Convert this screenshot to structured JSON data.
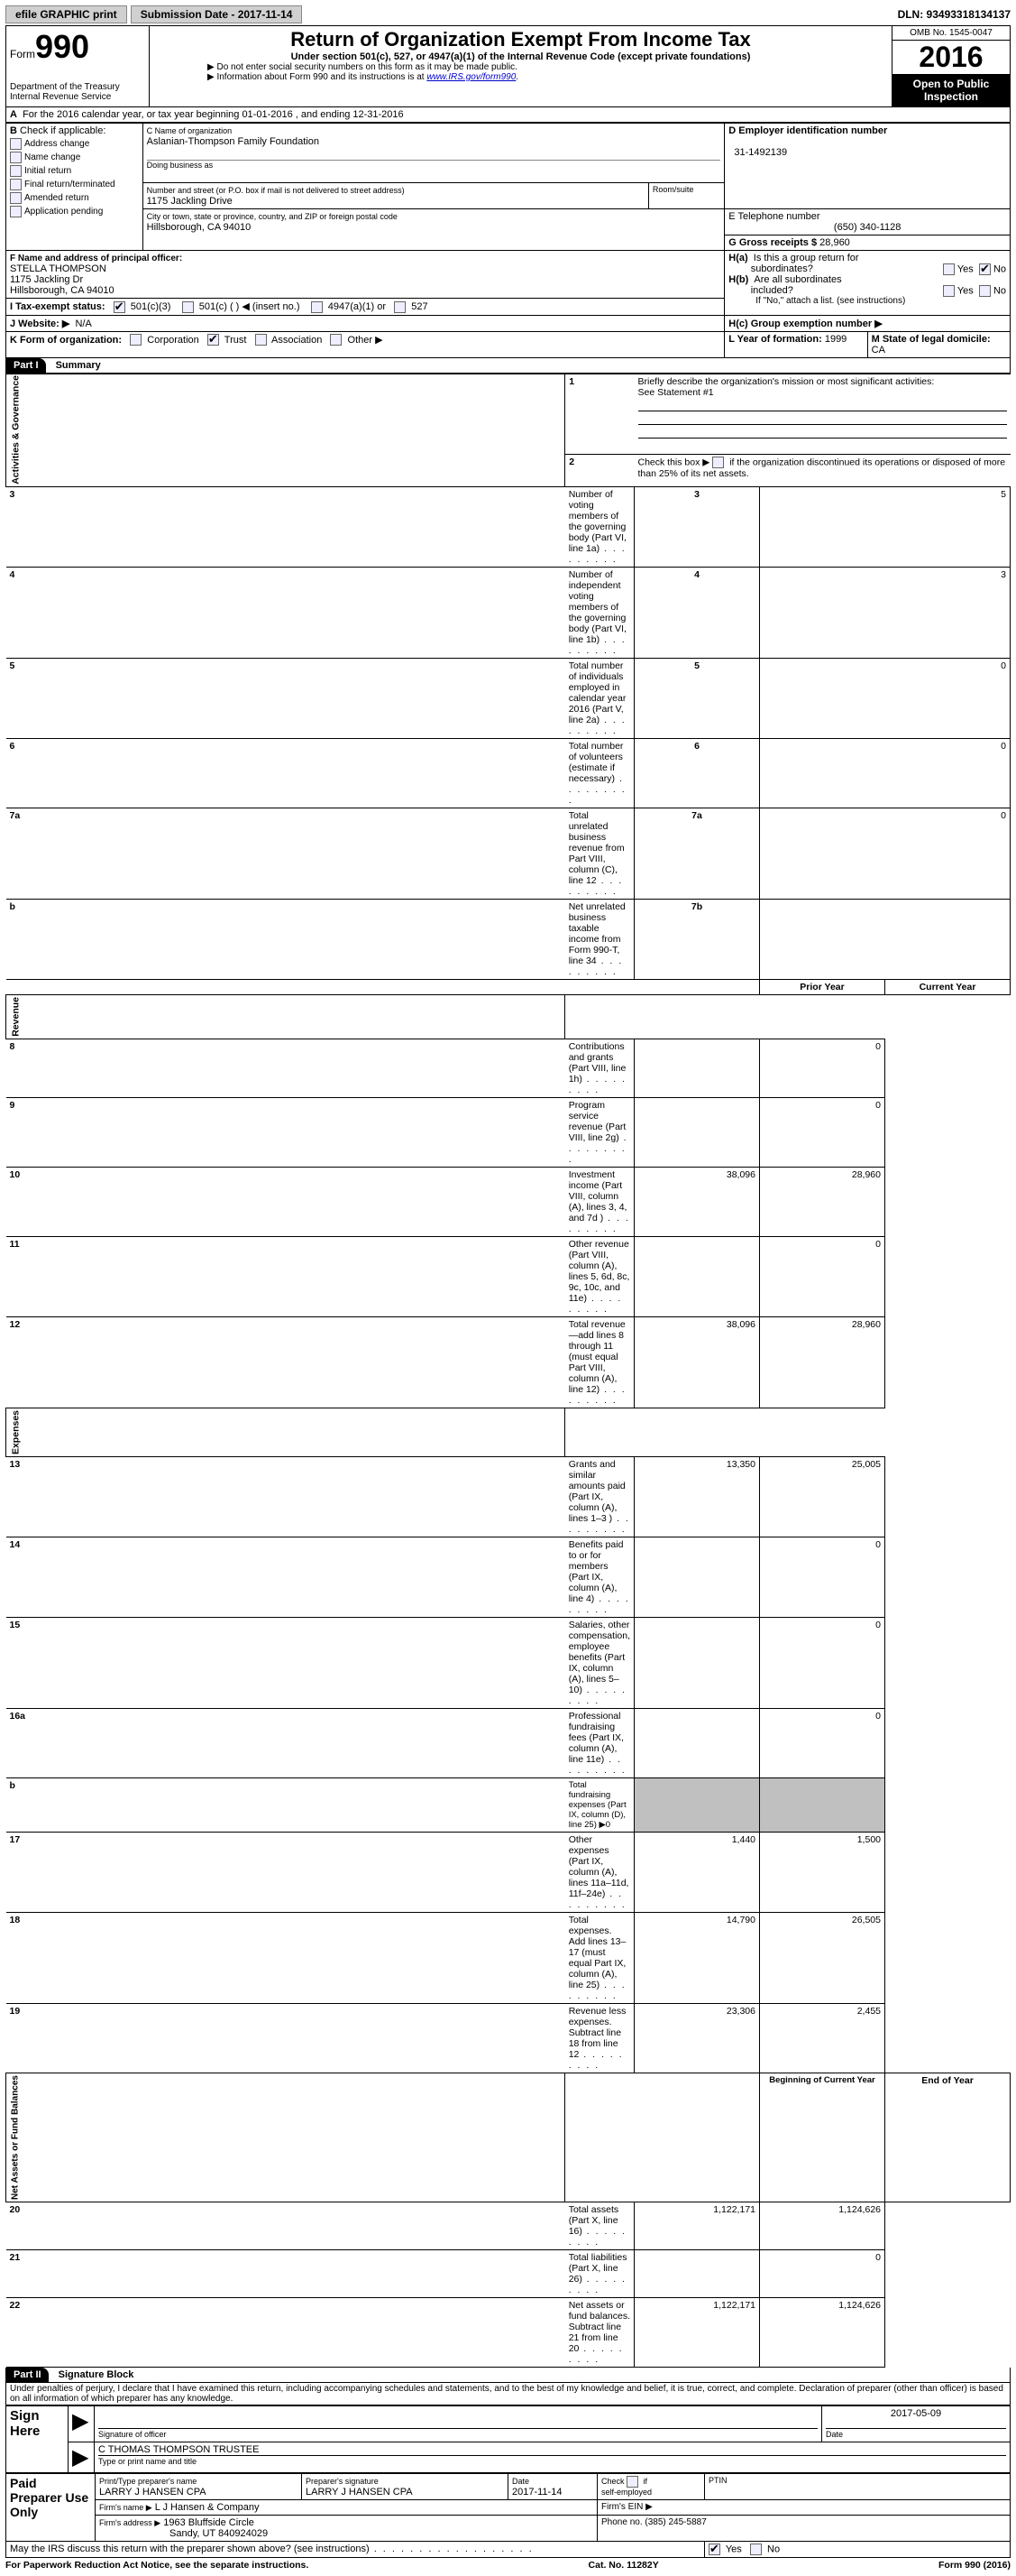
{
  "top": {
    "efile": "efile GRAPHIC print",
    "submission": "Submission Date - 2017-11-14",
    "dln": "DLN: 93493318134137"
  },
  "header": {
    "form_word": "Form",
    "form_num": "990",
    "dept": "Department of the Treasury",
    "irs": "Internal Revenue Service",
    "title": "Return of Organization Exempt From Income Tax",
    "subtitle": "Under section 501(c), 527, or 4947(a)(1) of the Internal Revenue Code (except private foundations)",
    "instr1": "▶ Do not enter social security numbers on this form as it may be made public.",
    "instr2_a": "▶ Information about Form 990 and its instructions is at ",
    "instr2_link": "www.IRS.gov/form990",
    "omb": "OMB No. 1545-0047",
    "year": "2016",
    "inspect1": "Open to Public",
    "inspect2": "Inspection"
  },
  "A": {
    "line": "For the 2016 calendar year, or tax year beginning 01-01-2016   , and ending 12-31-2016"
  },
  "B": {
    "label": "Check if applicable:",
    "opts": [
      "Address change",
      "Name change",
      "Initial return",
      "Final return/terminated",
      "Amended return",
      "Application pending"
    ]
  },
  "C": {
    "name_label": "C Name of organization",
    "name": "Aslanian-Thompson Family Foundation",
    "dba_label": "Doing business as",
    "addr_label": "Number and street (or P.O. box if mail is not delivered to street address)",
    "room_label": "Room/suite",
    "addr": "1175 Jackling Drive",
    "city_label": "City or town, state or province, country, and ZIP or foreign postal code",
    "city": "Hillsborough, CA  94010"
  },
  "D": {
    "label": "D Employer identification number",
    "val": "31-1492139"
  },
  "E": {
    "label": "E Telephone number",
    "val": "(650) 340-1128"
  },
  "G": {
    "label": "G Gross receipts $ ",
    "val": "28,960"
  },
  "F": {
    "label": "F  Name and address of principal officer:",
    "name": "STELLA THOMPSON",
    "addr1": "1175 Jackling Dr",
    "addr2": "Hillsborough, CA  94010"
  },
  "H": {
    "a": "H(a)  Is this a group return for subordinates?",
    "b": "H(b)  Are all subordinates included?",
    "note": "If \"No,\" attach a list. (see instructions)",
    "c": "H(c)  Group exemption number ▶",
    "yes": "Yes",
    "no": "No"
  },
  "I": {
    "label": "I   Tax-exempt status:",
    "o1": "501(c)(3)",
    "o2": "501(c) (  ) ◀ (insert no.)",
    "o3": "4947(a)(1) or",
    "o4": "527"
  },
  "J": {
    "label": "J  Website: ▶",
    "val": "N/A"
  },
  "K": {
    "label": "K Form of organization:",
    "opts": [
      "Corporation",
      "Trust",
      "Association",
      "Other ▶"
    ],
    "checked": 1
  },
  "L": {
    "label": "L Year of formation: ",
    "val": "1999"
  },
  "M": {
    "label": "M State of legal domicile: ",
    "val": "CA"
  },
  "part1": {
    "title": "Part I",
    "name": "Summary",
    "l1": "Briefly describe the organization's mission or most significant activities:",
    "l1v": "See Statement #1",
    "l2": "Check this box ▶        if the organization discontinued its operations or disposed of more than 25% of its net assets.",
    "rows_gov": [
      {
        "n": "3",
        "t": "Number of voting members of the governing body (Part VI, line 1a)",
        "rn": "3",
        "v": "5"
      },
      {
        "n": "4",
        "t": "Number of independent voting members of the governing body (Part VI, line 1b)",
        "rn": "4",
        "v": "3"
      },
      {
        "n": "5",
        "t": "Total number of individuals employed in calendar year 2016 (Part V, line 2a)",
        "rn": "5",
        "v": "0"
      },
      {
        "n": "6",
        "t": "Total number of volunteers (estimate if necessary)",
        "rn": "6",
        "v": "0"
      },
      {
        "n": "7a",
        "t": "Total unrelated business revenue from Part VIII, column (C), line 12",
        "rn": "7a",
        "v": "0"
      },
      {
        "n": "b",
        "t": "Net unrelated business taxable income from Form 990-T, line 34",
        "rn": "7b",
        "v": ""
      }
    ],
    "col_prior": "Prior Year",
    "col_curr": "Current Year",
    "rows_rev": [
      {
        "n": "8",
        "t": "Contributions and grants (Part VIII, line 1h)",
        "p": "",
        "c": "0"
      },
      {
        "n": "9",
        "t": "Program service revenue (Part VIII, line 2g)",
        "p": "",
        "c": "0"
      },
      {
        "n": "10",
        "t": "Investment income (Part VIII, column (A), lines 3, 4, and 7d )",
        "p": "38,096",
        "c": "28,960"
      },
      {
        "n": "11",
        "t": "Other revenue (Part VIII, column (A), lines 5, 6d, 8c, 9c, 10c, and 11e)",
        "p": "",
        "c": "0"
      },
      {
        "n": "12",
        "t": "Total revenue—add lines 8 through 11 (must equal Part VIII, column (A), line 12)",
        "p": "38,096",
        "c": "28,960"
      }
    ],
    "rows_exp": [
      {
        "n": "13",
        "t": "Grants and similar amounts paid (Part IX, column (A), lines 1–3 )",
        "p": "13,350",
        "c": "25,005"
      },
      {
        "n": "14",
        "t": "Benefits paid to or for members (Part IX, column (A), line 4)",
        "p": "",
        "c": "0"
      },
      {
        "n": "15",
        "t": "Salaries, other compensation, employee benefits (Part IX, column (A), lines 5–10)",
        "p": "",
        "c": "0"
      },
      {
        "n": "16a",
        "t": "Professional fundraising fees (Part IX, column (A), line 11e)",
        "p": "",
        "c": "0"
      },
      {
        "n": "b",
        "t": "Total fundraising expenses (Part IX, column (D), line 25) ▶0",
        "p": "SHADE",
        "c": "SHADE",
        "small": true
      },
      {
        "n": "17",
        "t": "Other expenses (Part IX, column (A), lines 11a–11d, 11f–24e)",
        "p": "1,440",
        "c": "1,500"
      },
      {
        "n": "18",
        "t": "Total expenses. Add lines 13–17 (must equal Part IX, column (A), line 25)",
        "p": "14,790",
        "c": "26,505"
      },
      {
        "n": "19",
        "t": "Revenue less expenses. Subtract line 18 from line 12",
        "p": "23,306",
        "c": "2,455"
      }
    ],
    "col_beg": "Beginning of Current Year",
    "col_end": "End of Year",
    "rows_net": [
      {
        "n": "20",
        "t": "Total assets (Part X, line 16)",
        "p": "1,122,171",
        "c": "1,124,626"
      },
      {
        "n": "21",
        "t": "Total liabilities (Part X, line 26)",
        "p": "",
        "c": "0"
      },
      {
        "n": "22",
        "t": "Net assets or fund balances. Subtract line 21 from line 20",
        "p": "1,122,171",
        "c": "1,124,626"
      }
    ],
    "vlabels": {
      "gov": "Activities & Governance",
      "rev": "Revenue",
      "exp": "Expenses",
      "net": "Net Assets or Fund Balances"
    }
  },
  "part2": {
    "title": "Part II",
    "name": "Signature Block",
    "perjury": "Under penalties of perjury, I declare that I have examined this return, including accompanying schedules and statements, and to the best of my knowledge and belief, it is true, correct, and complete. Declaration of preparer (other than officer) is based on all information of which preparer has any knowledge.",
    "sign_here": "Sign Here",
    "sig_officer": "Signature of officer",
    "date_l": "Date",
    "date_v": "2017-05-09",
    "officer_name": "C THOMAS THOMPSON  TRUSTEE",
    "type_name": "Type or print name and title",
    "paid": "Paid Preparer Use Only",
    "prep_name_l": "Print/Type preparer's name",
    "prep_name": "LARRY J HANSEN CPA",
    "prep_sig_l": "Preparer's signature",
    "prep_sig": "LARRY J HANSEN CPA",
    "prep_date": "2017-11-14",
    "check_se": "Check         if self-employed",
    "ptin": "PTIN",
    "firm_name_l": "Firm's name    ▶",
    "firm_name": "L J Hansen & Company",
    "firm_ein": "Firm's EIN ▶",
    "firm_addr_l": "Firm's address ▶",
    "firm_addr1": "1963 Bluffside Circle",
    "firm_addr2": "Sandy, UT  840924029",
    "phone_l": "Phone no. ",
    "phone": "(385) 245-5887",
    "discuss": "May the IRS discuss this return with the preparer shown above? (see instructions)"
  },
  "footer": {
    "left": "For Paperwork Reduction Act Notice, see the separate instructions.",
    "mid": "Cat. No. 11282Y",
    "right": "Form 990 (2016)"
  }
}
